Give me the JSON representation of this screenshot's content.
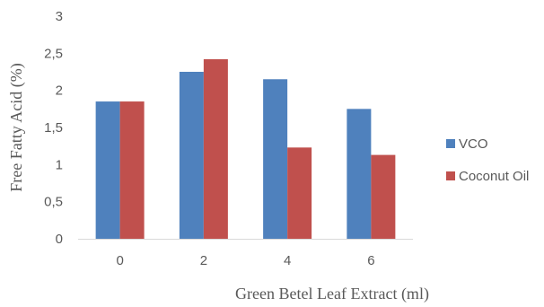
{
  "chart_data": {
    "type": "bar",
    "categories": [
      "0",
      "2",
      "4",
      "6"
    ],
    "series": [
      {
        "name": "VCO",
        "color": "#4f81bd",
        "values": [
          1.85,
          2.25,
          2.15,
          1.75
        ]
      },
      {
        "name": "Coconut Oil",
        "color": "#c0504d",
        "values": [
          1.85,
          2.42,
          1.23,
          1.13
        ]
      }
    ],
    "title": "",
    "xlabel": "Green Betel Leaf Extract (ml)",
    "ylabel": "Free Fatty Acid (%)",
    "ylim": [
      0,
      3
    ],
    "yticks": [
      "0",
      "0,5",
      "1",
      "1,5",
      "2",
      "2,5",
      "3"
    ],
    "grid": false,
    "legend_position": "right"
  }
}
